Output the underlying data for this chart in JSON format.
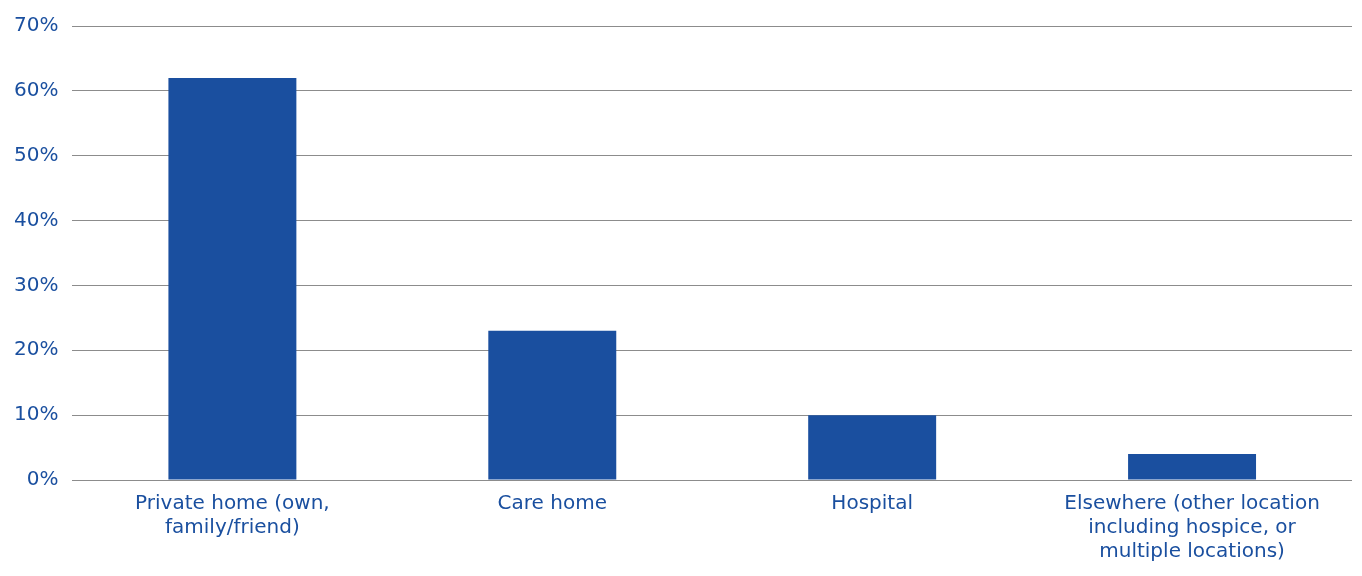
{
  "chart_data": {
    "type": "bar",
    "categories": [
      "Private home (own, family/friend)",
      "Care home",
      "Hospital",
      "Elsewhere (other location including hospice, or multiple locations)"
    ],
    "values": [
      62,
      23,
      10,
      4
    ],
    "color": "#1a4f9f",
    "ylim": [
      0,
      70
    ],
    "yticks": [
      {
        "value": 0,
        "label": "0%"
      },
      {
        "value": 10,
        "label": "10%"
      },
      {
        "value": 20,
        "label": "20%"
      },
      {
        "value": 30,
        "label": "30%"
      },
      {
        "value": 40,
        "label": "40%"
      },
      {
        "value": 50,
        "label": "50%"
      },
      {
        "value": 60,
        "label": "60%"
      },
      {
        "value": 70,
        "label": "70%"
      }
    ],
    "grid": "y"
  }
}
